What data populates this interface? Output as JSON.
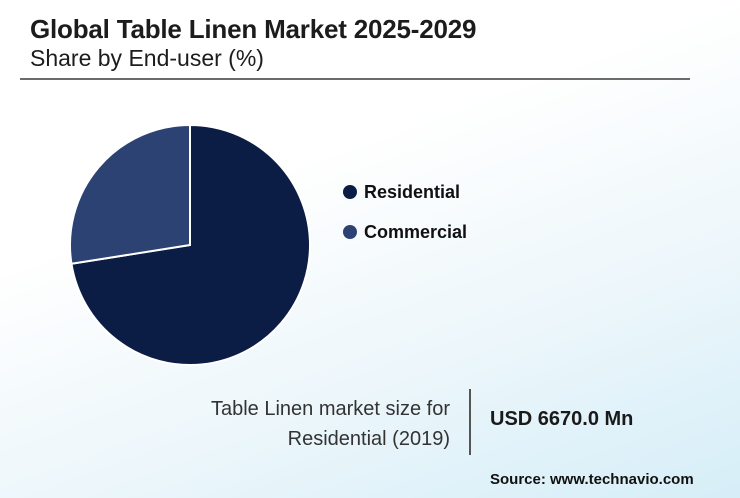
{
  "header": {
    "title": "Global Table Linen Market 2025-2029",
    "subtitle": "Share by End-user (%)"
  },
  "chart_data": {
    "type": "pie",
    "categories": [
      "Residential",
      "Commercial"
    ],
    "values": [
      72.5,
      27.5
    ],
    "colors": [
      "#0b1c45",
      "#2c4272"
    ],
    "legend_position": "right",
    "start_angle_deg": 0
  },
  "legend": {
    "items": [
      {
        "label": "Residential",
        "color": "#0b1c45"
      },
      {
        "label": "Commercial",
        "color": "#2c4272"
      }
    ]
  },
  "info": {
    "label_line1": "Table Linen market size for",
    "label_line2": "Residential (2019)",
    "value": "USD 6670.0 Mn"
  },
  "source": "Source: www.technavio.com"
}
